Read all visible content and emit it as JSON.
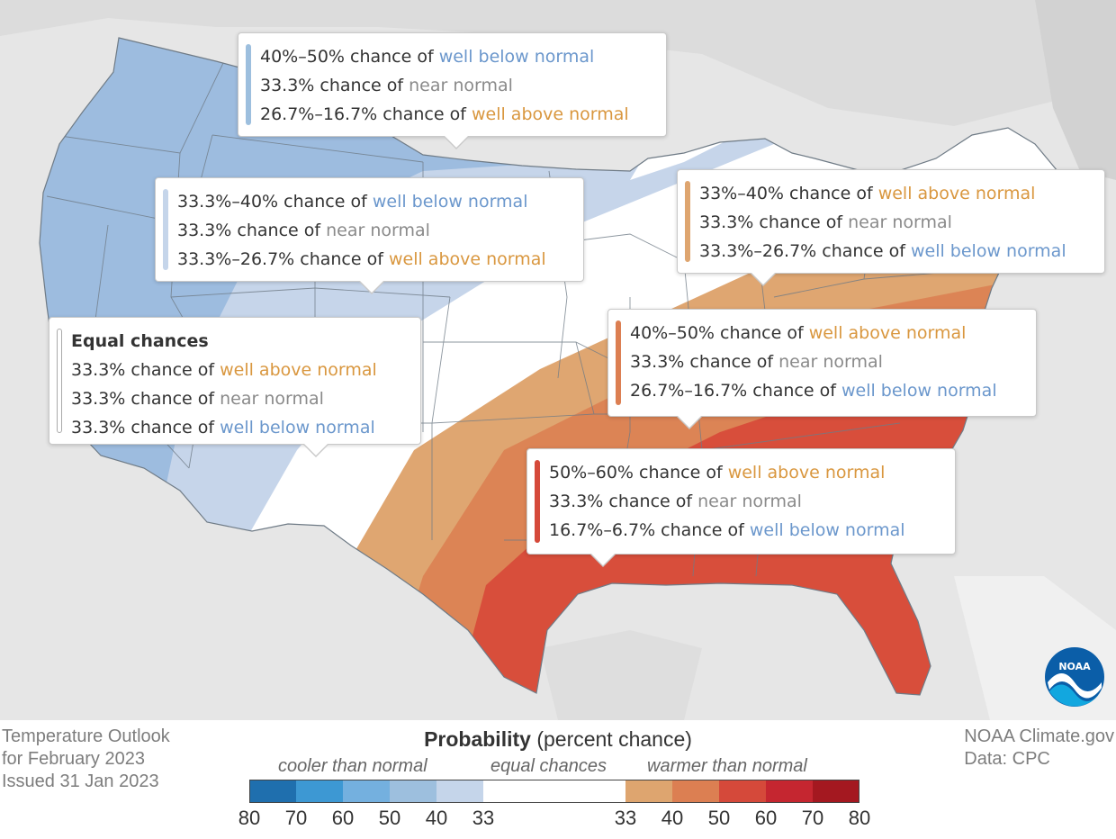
{
  "callouts": [
    {
      "id": "northern-plains",
      "lines": [
        {
          "prefix": "40%–50% chance of ",
          "term": "well below normal",
          "type": "below"
        },
        {
          "prefix": "33.3% chance of ",
          "term": "near normal",
          "type": "near"
        },
        {
          "prefix": "26.7%–16.7% chance of ",
          "term": "well above normal",
          "type": "above"
        }
      ]
    },
    {
      "id": "northwest-central",
      "lines": [
        {
          "prefix": "33.3%–40% chance of ",
          "term": "well below normal",
          "type": "below"
        },
        {
          "prefix": "33.3% chance of ",
          "term": "near normal",
          "type": "near"
        },
        {
          "prefix": "33.3%–26.7% chance of ",
          "term": "well above normal",
          "type": "above"
        }
      ]
    },
    {
      "id": "equal-chances",
      "title": "Equal chances",
      "lines": [
        {
          "prefix": "33.3% chance of ",
          "term": "well above normal",
          "type": "above"
        },
        {
          "prefix": "33.3% chance of ",
          "term": "near normal",
          "type": "near"
        },
        {
          "prefix": "33.3% chance of ",
          "term": "well below normal",
          "type": "below"
        }
      ]
    },
    {
      "id": "northeast",
      "lines": [
        {
          "prefix": "33%–40% chance of ",
          "term": "well above normal",
          "type": "above"
        },
        {
          "prefix": "33.3% chance of ",
          "term": "near normal",
          "type": "near"
        },
        {
          "prefix": "33.3%–26.7% chance of ",
          "term": "well below normal",
          "type": "below"
        }
      ]
    },
    {
      "id": "mid-south",
      "lines": [
        {
          "prefix": "40%–50% chance of ",
          "term": "well above normal",
          "type": "above"
        },
        {
          "prefix": "33.3% chance of ",
          "term": "near normal",
          "type": "near"
        },
        {
          "prefix": "26.7%–16.7% chance of ",
          "term": "well below normal",
          "type": "below"
        }
      ]
    },
    {
      "id": "gulf-coast",
      "lines": [
        {
          "prefix": "50%–60% chance of ",
          "term": "well above normal",
          "type": "above"
        },
        {
          "prefix": "33.3% chance of ",
          "term": "near normal",
          "type": "near"
        },
        {
          "prefix": "16.7%–6.7% chance of ",
          "term": "well below normal",
          "type": "below"
        }
      ]
    }
  ],
  "info_left": [
    "Temperature Outlook",
    "for February 2023",
    "Issued 31 Jan 2023"
  ],
  "info_right": [
    "NOAA Climate.gov",
    "Data: CPC"
  ],
  "legend": {
    "title_bold": "Probability",
    "title_rest": " (percent chance)",
    "cooler": "cooler than normal",
    "equal": "equal chances",
    "warmer": "warmer than normal",
    "cool_ticks": [
      "80",
      "70",
      "60",
      "50",
      "40",
      "33"
    ],
    "warm_ticks": [
      "33",
      "40",
      "50",
      "60",
      "70",
      "80"
    ],
    "cool_colors": [
      "#1f6fae",
      "#3d98d3",
      "#74b0df",
      "#9dbfde",
      "#c5d5ea"
    ],
    "neutral_color": "#ffffff",
    "warm_colors": [
      "#dea56f",
      "#dc7f52",
      "#d5493a",
      "#c52630",
      "#a41820"
    ]
  },
  "logo_text": "NOAA",
  "colors": {
    "below": "#6b97cc",
    "near": "#8a8a8a",
    "above": "#d9973f"
  }
}
